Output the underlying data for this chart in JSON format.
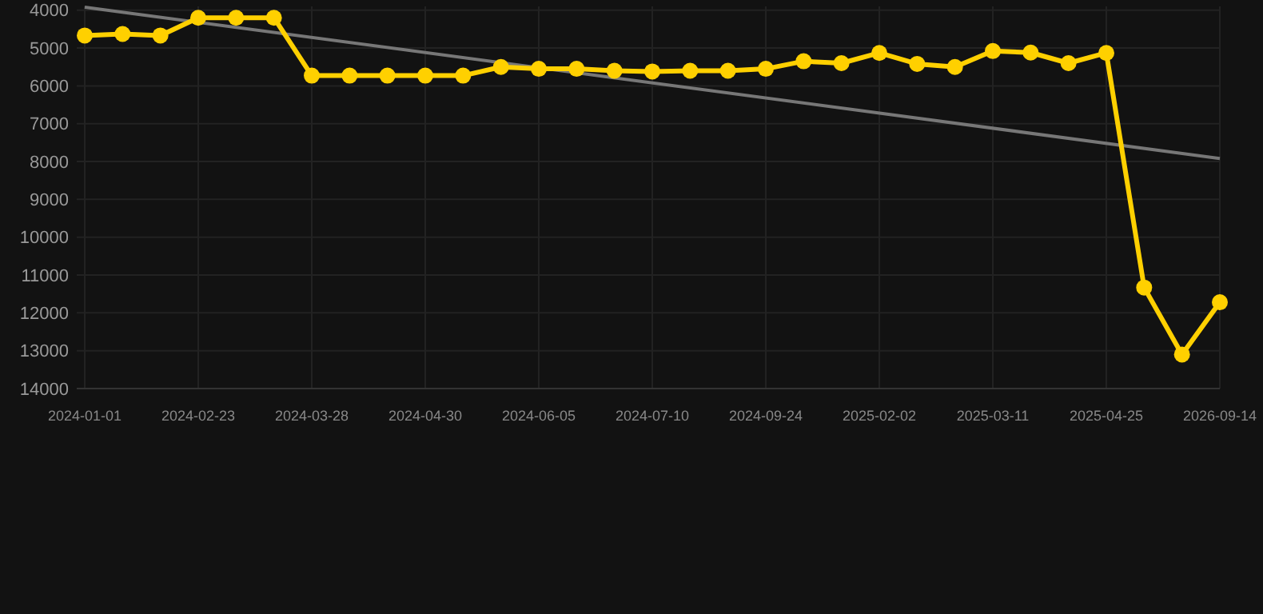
{
  "chart_data": {
    "type": "line",
    "categories": [
      "2024-01-01",
      null,
      null,
      "2024-02-23",
      null,
      null,
      "2024-03-28",
      null,
      null,
      "2024-04-30",
      null,
      null,
      "2024-06-05",
      null,
      null,
      "2024-07-10",
      null,
      null,
      "2024-09-24",
      null,
      null,
      "2025-02-02",
      null,
      null,
      "2025-03-11",
      null,
      null,
      "2025-04-25",
      null,
      null,
      "2026-09-14"
    ],
    "series": [
      {
        "color": "#ffd000",
        "marker": "circle",
        "values": [
          4670,
          4630,
          4670,
          4200,
          4200,
          4200,
          5730,
          5730,
          5730,
          5730,
          5730,
          5500,
          5550,
          5550,
          5600,
          5620,
          5600,
          5600,
          5550,
          5350,
          5400,
          5130,
          5420,
          5500,
          5080,
          5120,
          5400,
          5130,
          11330,
          13100,
          11720
        ]
      },
      {
        "color": "#777777",
        "marker": "none",
        "values": [
          3920,
          null,
          null,
          null,
          null,
          null,
          null,
          null,
          null,
          null,
          null,
          null,
          null,
          null,
          null,
          null,
          null,
          null,
          null,
          null,
          null,
          null,
          null,
          null,
          null,
          null,
          null,
          null,
          null,
          null,
          7920
        ]
      }
    ],
    "ylim": [
      14000,
      3900
    ],
    "yticks": [
      4000,
      5000,
      6000,
      7000,
      8000,
      9000,
      10000,
      11000,
      12000,
      13000,
      14000
    ],
    "grid": true
  }
}
